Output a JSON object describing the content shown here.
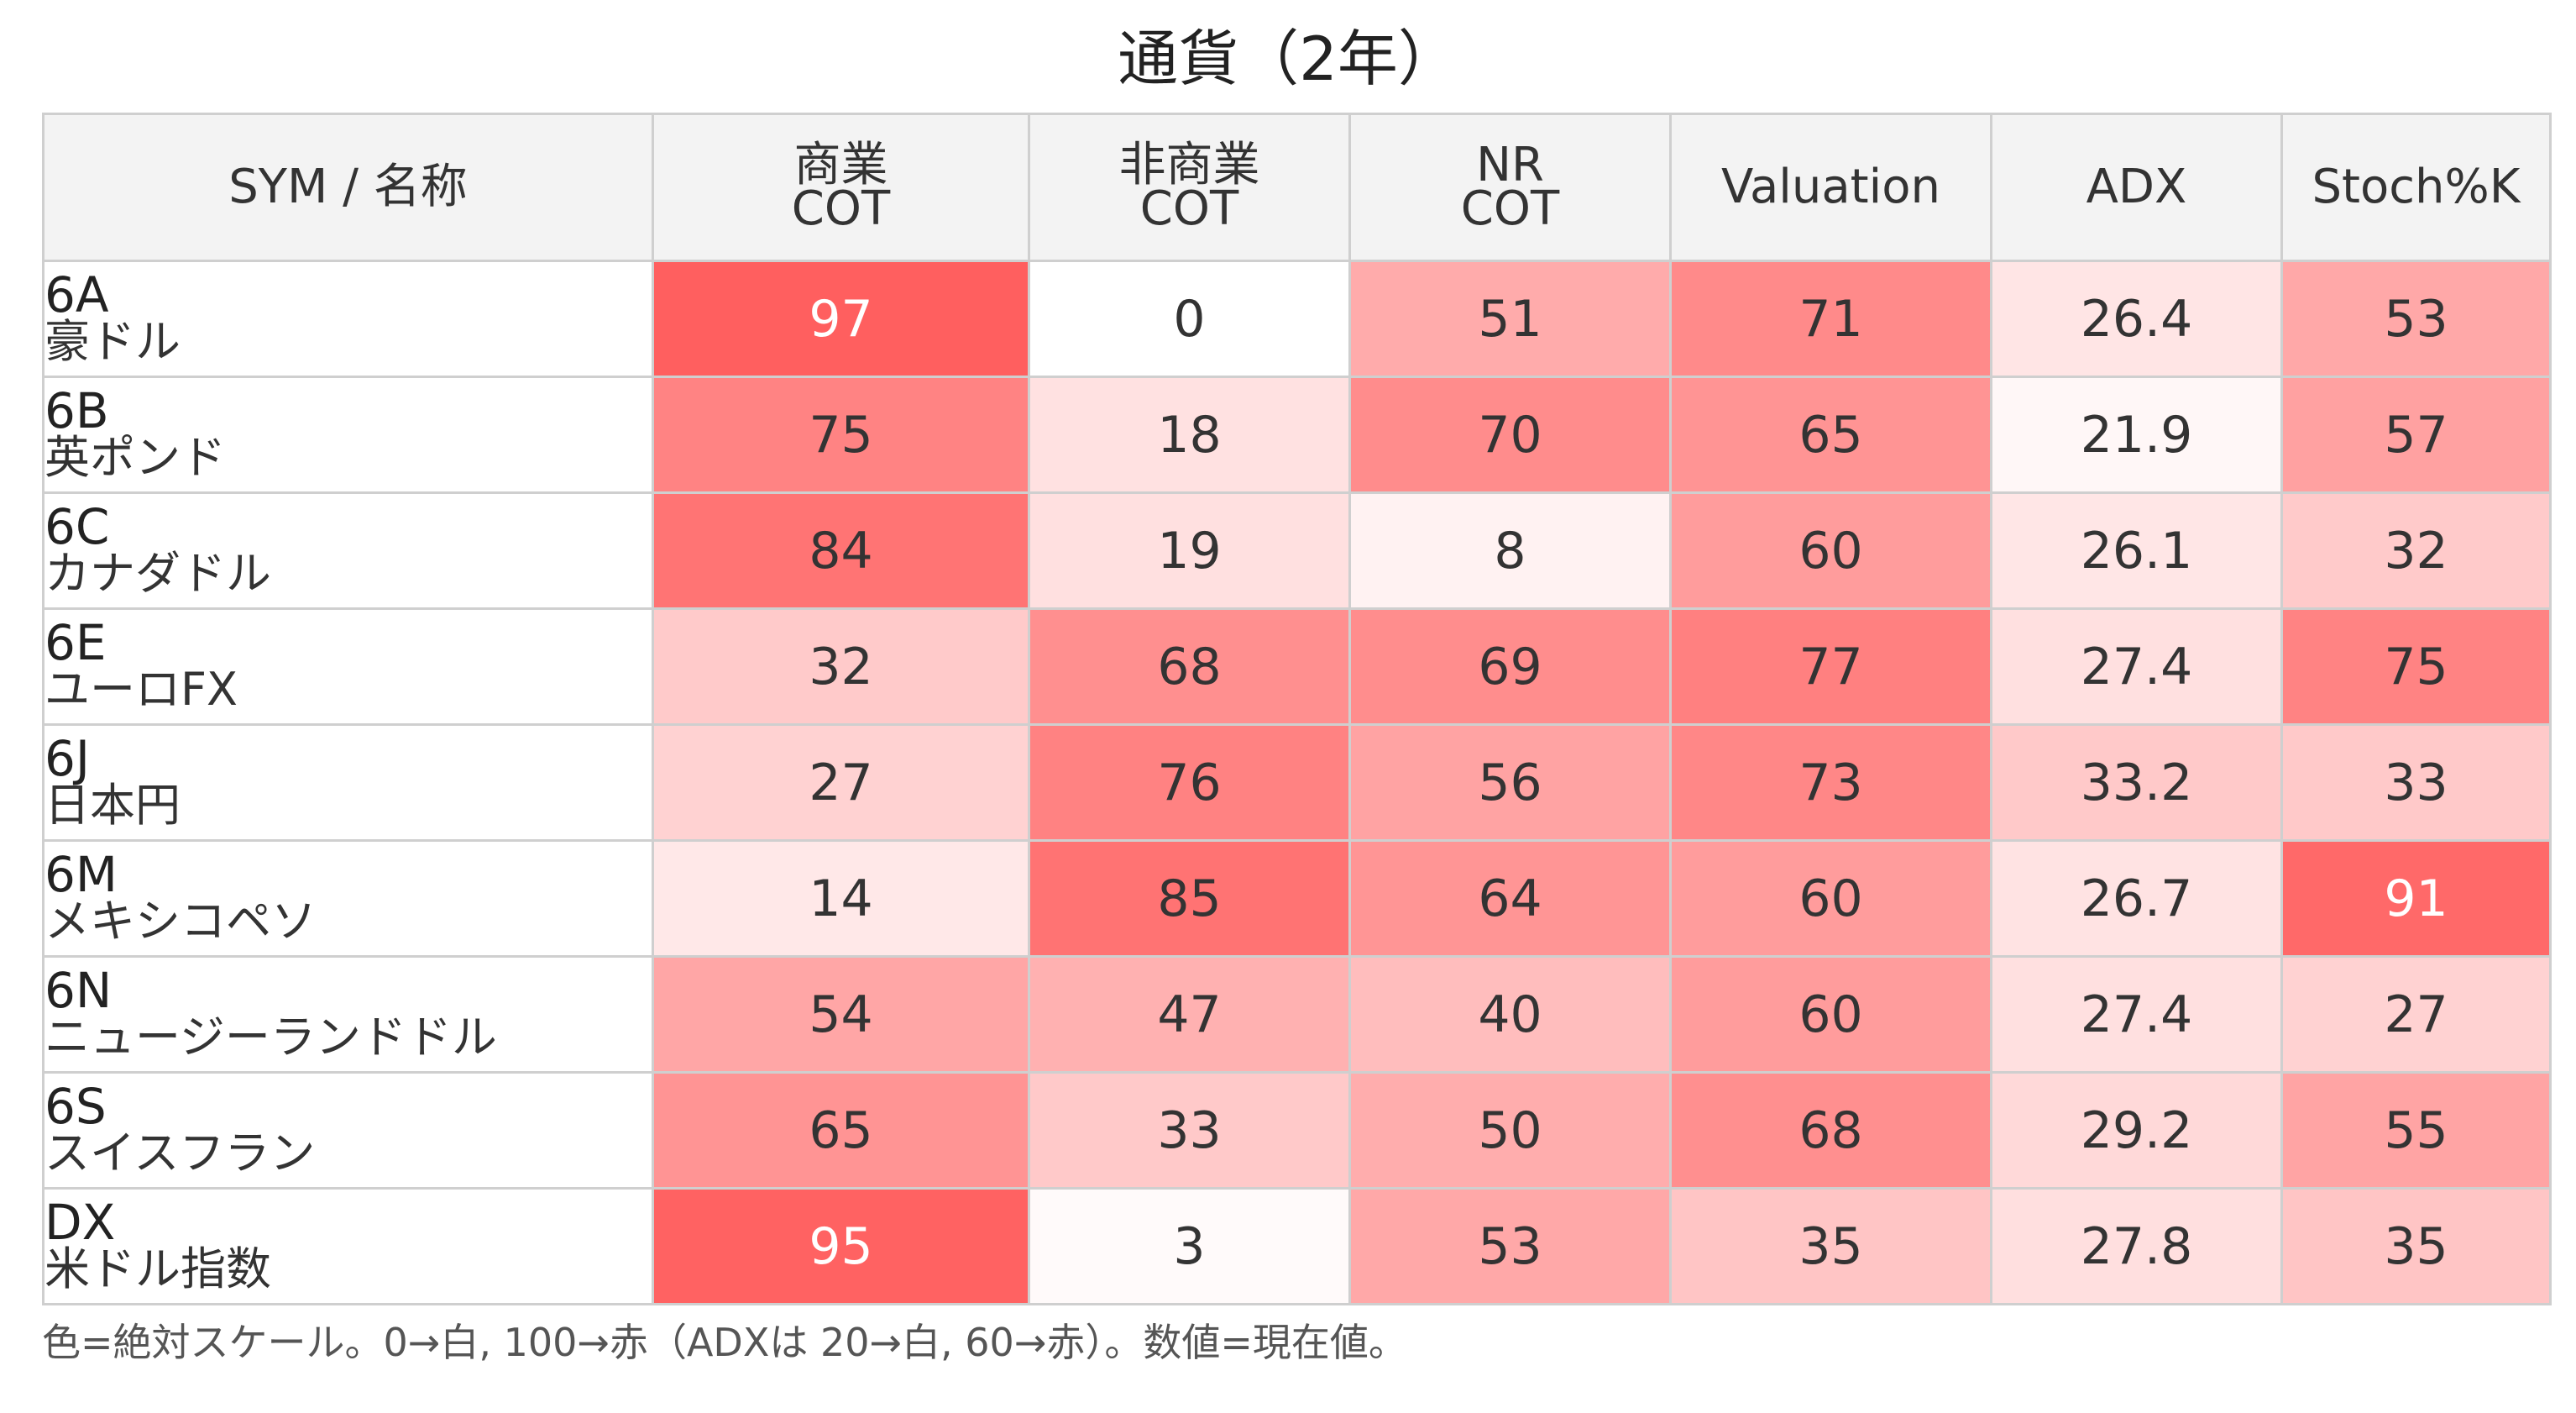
{
  "chart_data": {
    "type": "heatmap",
    "title": "通貨（2年）",
    "columns": [
      "SYM / 名称",
      "商業\nCOT",
      "非商業\nCOT",
      "NR\nCOT",
      "Valuation",
      "ADX",
      "Stoch%K"
    ],
    "rows": [
      {
        "sym": "6A",
        "name": "豪ドル",
        "values": [
          "97",
          "0",
          "51",
          "71",
          "26.4",
          "53"
        ]
      },
      {
        "sym": "6B",
        "name": "英ポンド",
        "values": [
          "75",
          "18",
          "70",
          "65",
          "21.9",
          "57"
        ]
      },
      {
        "sym": "6C",
        "name": "カナダドル",
        "values": [
          "84",
          "19",
          "8",
          "60",
          "26.1",
          "32"
        ]
      },
      {
        "sym": "6E",
        "name": "ユーロFX",
        "values": [
          "32",
          "68",
          "69",
          "77",
          "27.4",
          "75"
        ]
      },
      {
        "sym": "6J",
        "name": "日本円",
        "values": [
          "27",
          "76",
          "56",
          "73",
          "33.2",
          "33"
        ]
      },
      {
        "sym": "6M",
        "name": "メキシコペソ",
        "values": [
          "14",
          "85",
          "64",
          "60",
          "26.7",
          "91"
        ]
      },
      {
        "sym": "6N",
        "name": "ニュージーランドドル",
        "values": [
          "54",
          "47",
          "40",
          "60",
          "27.4",
          "27"
        ]
      },
      {
        "sym": "6S",
        "name": "スイスフラン",
        "values": [
          "65",
          "33",
          "50",
          "68",
          "29.2",
          "55"
        ]
      },
      {
        "sym": "DX",
        "name": "米ドル指数",
        "values": [
          "95",
          "3",
          "53",
          "35",
          "27.8",
          "35"
        ]
      }
    ],
    "color_scale": {
      "low": "#ffffff",
      "high": "#ff5a5a",
      "min": 0,
      "max": 100,
      "adx_min": 20,
      "adx_max": 60
    },
    "note": "色=絶対スケール。0→白, 100→赤（ADXは 20→白, 60→赤）。数値=現在値。"
  }
}
